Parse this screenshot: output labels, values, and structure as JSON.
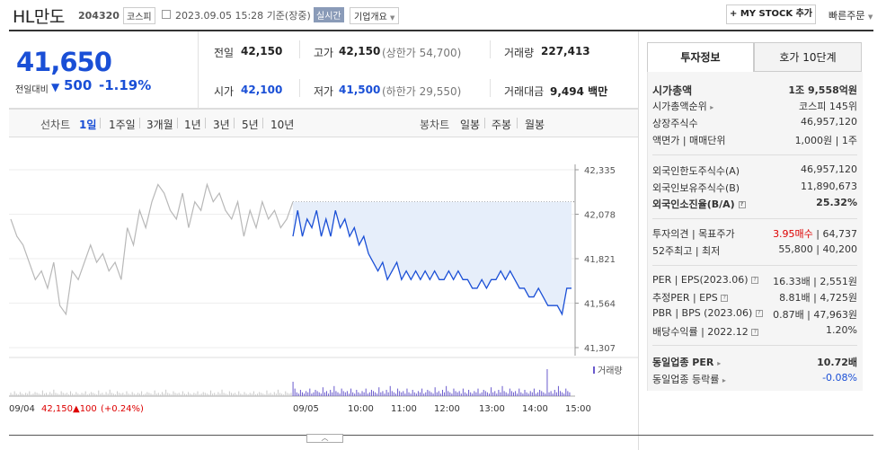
{
  "header": {
    "name": "HL만도",
    "code": "204320",
    "market": "코스피",
    "datetime": "2023.09.05 15:28",
    "basis": "기준(장중)",
    "realtime": "실시간",
    "company_info": "기업개요",
    "mystock": "+ MY STOCK 추가",
    "quick_order": "빠른주문"
  },
  "summary": {
    "price": "41,650",
    "change_label": "전일대비",
    "change_arrow": "▼",
    "change_value": "500",
    "change_rate": "-1.19%",
    "prev_close_label": "전일",
    "prev_close": "42,150",
    "open_label": "시가",
    "open": "42,100",
    "high_label": "고가",
    "high": "42,150",
    "upper_limit": "(상한가 54,700)",
    "low_label": "저가",
    "low": "41,500",
    "lower_limit": "(하한가 29,550)",
    "volume_label": "거래량",
    "volume": "227,413",
    "amount_label": "거래대금",
    "amount": "9,494",
    "amount_unit": "백만"
  },
  "chart_tabs": {
    "line_label": "선차트",
    "line_periods": [
      "1일",
      "1주일",
      "3개월",
      "1년",
      "3년",
      "5년",
      "10년"
    ],
    "candle_label": "봉차트",
    "candle_periods": [
      "일봉",
      "주봉",
      "월봉"
    ]
  },
  "chart_data": {
    "type": "line",
    "y_ticks": [
      "42,335",
      "42,078",
      "41,821",
      "41,564",
      "41,307"
    ],
    "ylim": [
      41307,
      42335
    ],
    "prev_close": 42150,
    "x_ticks": [
      "09/04",
      "09/05",
      "10:00",
      "11:00",
      "12:00",
      "13:00",
      "14:00",
      "15:00"
    ],
    "volume_label": "거래량",
    "prev_day_summary": {
      "date": "09/04",
      "price": "42,150",
      "change": "▲100",
      "rate": "(+0.24%)"
    },
    "series": [
      {
        "period": "09/04",
        "values": [
          42050,
          41950,
          41900,
          41800,
          41700,
          41750,
          41650,
          41800,
          41550,
          41500,
          41750,
          41700,
          41800,
          41900,
          41800,
          41850,
          41750,
          41800,
          41700,
          42000,
          41900,
          42100,
          42000,
          42150,
          42250,
          42200,
          42100,
          42050,
          42200,
          42000,
          42150,
          42100,
          42250,
          42150,
          42200,
          42100,
          42050,
          42150,
          41950,
          42100,
          42000,
          42150,
          42050,
          42100,
          42000,
          42050,
          42150
        ]
      },
      {
        "period": "09/05",
        "values": [
          41950,
          42100,
          41950,
          42050,
          42000,
          42100,
          41950,
          42050,
          41950,
          42100,
          42000,
          42050,
          41950,
          42000,
          41900,
          41950,
          41850,
          41800,
          41750,
          41800,
          41700,
          41750,
          41800,
          41700,
          41750,
          41700,
          41750,
          41700,
          41750,
          41700,
          41750,
          41700,
          41700,
          41750,
          41700,
          41750,
          41700,
          41700,
          41650,
          41650,
          41700,
          41650,
          41700,
          41700,
          41750,
          41700,
          41750,
          41700,
          41650,
          41650,
          41600,
          41600,
          41650,
          41600,
          41550,
          41550,
          41550,
          41500,
          41650,
          41650
        ]
      }
    ]
  },
  "sidebar": {
    "tab_info": "투자정보",
    "tab_hoga": "호가 10단계",
    "rows": {
      "mcap_k": "시가총액",
      "mcap_v": "1조 9,558억원",
      "mrank_k": "시가총액순위",
      "mrank_v": "코스피 145위",
      "shares_k": "상장주식수",
      "shares_v": "46,957,120",
      "face_k": "액면가 | 매매단위",
      "face_v": "1,000원 | 1주",
      "fl_k": "외국인한도주식수(A)",
      "fl_v": "46,957,120",
      "fh_k": "외국인보유주식수(B)",
      "fh_v": "11,890,673",
      "fr_k": "외국인소진율(B/A)",
      "fr_v": "25.32%",
      "op_k": "투자의견 | 목표주가",
      "op_v1": "3.95매수",
      "op_v2": "| 64,737",
      "hl_k": "52주최고 | 최저",
      "hl_v": "55,800 | 40,200",
      "per_k": "PER | EPS(2023.06)",
      "per_v": "16.33배 | 2,551원",
      "eper_k": "추정PER | EPS",
      "eper_v": "8.81배 | 4,725원",
      "pbr_k": "PBR | BPS (2023.06)",
      "pbr_v": "0.87배 | 47,963원",
      "div_k": "배당수익률 | 2022.12",
      "div_v": "1.20%",
      "sper_k": "동일업종 PER",
      "sper_v": "10.72배",
      "srate_k": "동일업종 등락률",
      "srate_v": "-0.08%"
    }
  },
  "colors": {
    "accent": "#1a4fd6",
    "up": "#d00",
    "fill": "#e6eefa",
    "volume": "#6a5acd"
  }
}
